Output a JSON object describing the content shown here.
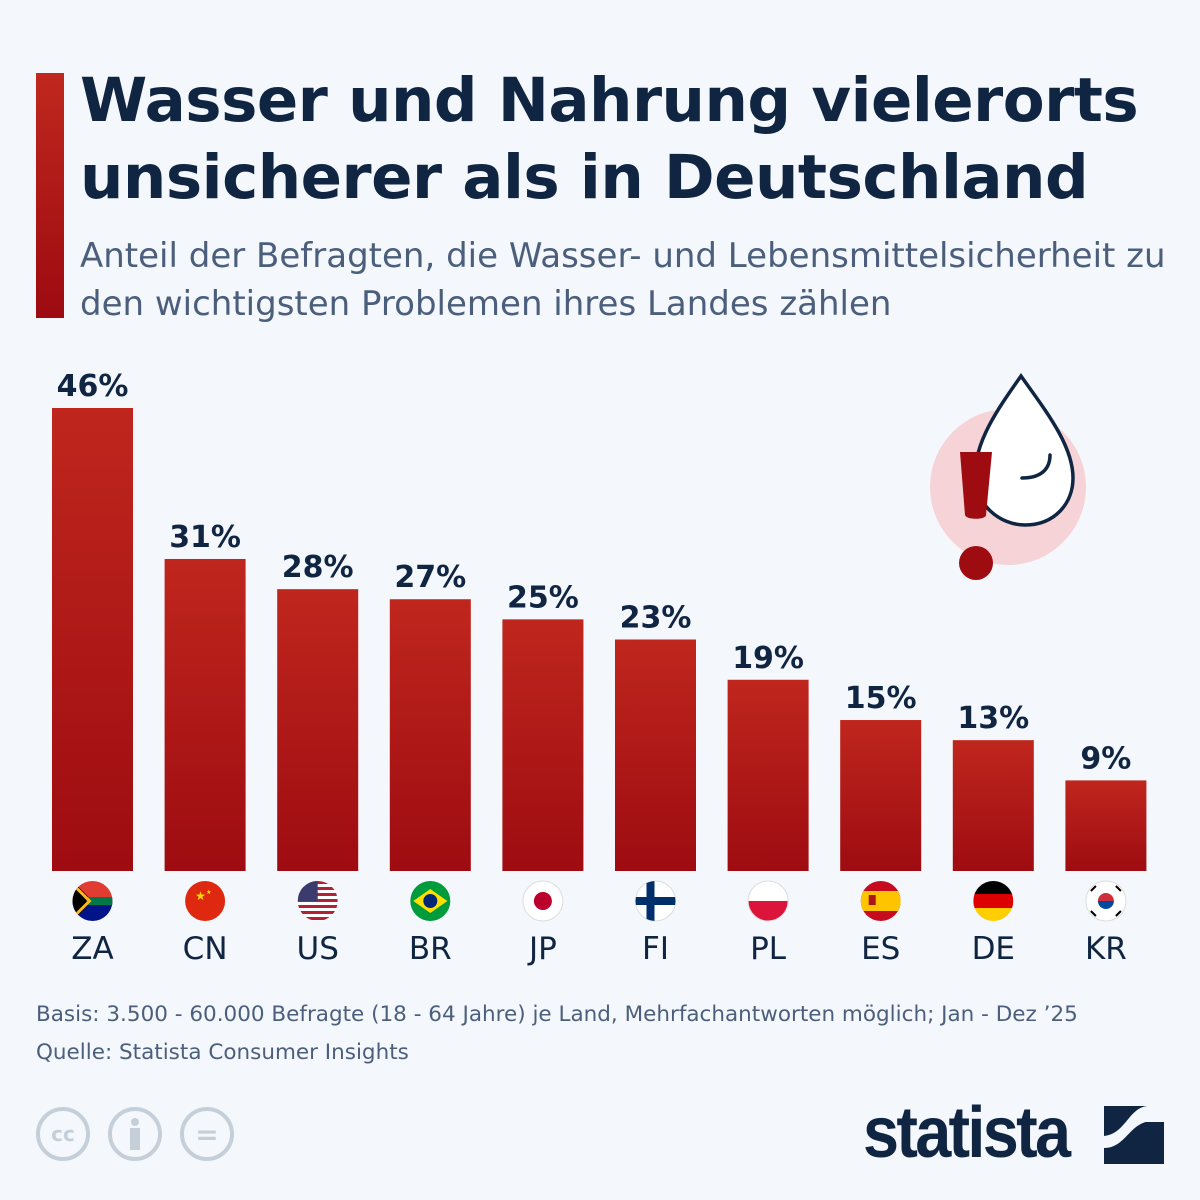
{
  "header": {
    "title": "Wasser und Nahrung vielerorts unsicherer als in Deutschland",
    "subtitle": "Anteil der Befragten, die Wasser- und Lebensmittelsicherheit zu den wichtigsten Problemen ihres Landes zählen"
  },
  "chart_data": {
    "type": "bar",
    "categories": [
      "ZA",
      "CN",
      "US",
      "BR",
      "JP",
      "FI",
      "PL",
      "ES",
      "DE",
      "KR"
    ],
    "values": [
      46,
      31,
      28,
      27,
      25,
      23,
      19,
      15,
      13,
      9
    ],
    "data_labels": [
      "46%",
      "31%",
      "28%",
      "27%",
      "25%",
      "23%",
      "19%",
      "15%",
      "13%",
      "9%"
    ],
    "unit": "%",
    "ylim": [
      0,
      46
    ],
    "grid": false,
    "bar_color": "#b3201a"
  },
  "icons": {
    "illustration": "water-drop-warning-icon",
    "flags": [
      "south-africa-flag-icon",
      "china-flag-icon",
      "usa-flag-icon",
      "brazil-flag-icon",
      "japan-flag-icon",
      "finland-flag-icon",
      "poland-flag-icon",
      "spain-flag-icon",
      "germany-flag-icon",
      "south-korea-flag-icon"
    ]
  },
  "footer": {
    "basis": "Basis: 3.500 - 60.000 Befragte (18 - 64 Jahre) je Land, Mehrfachantworten möglich; Jan - Dez ’25",
    "source": "Quelle: Statista Consumer Insights",
    "logo": "statista",
    "license_cc": "cc",
    "license_eq": "="
  }
}
